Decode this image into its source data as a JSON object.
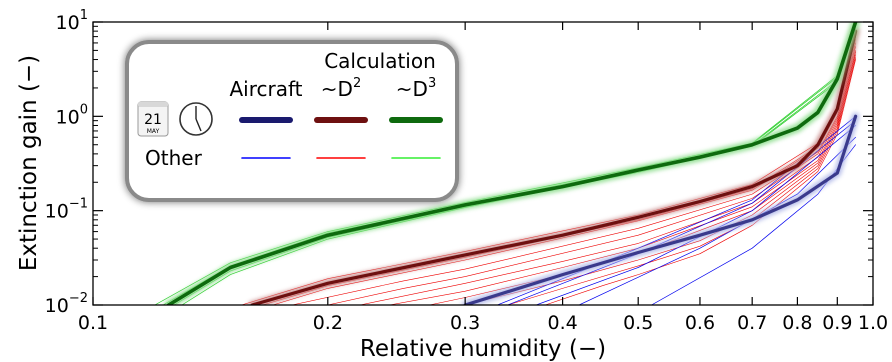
{
  "chart_data": {
    "type": "line",
    "xlabel": "Relative humidity (−)",
    "ylabel": "Extinction gain (−)",
    "xscale": "log",
    "yscale": "log",
    "xlim": [
      0.1,
      1.0
    ],
    "ylim": [
      0.01,
      10
    ],
    "grid": false,
    "x_tick_labels": [
      {
        "v": 0.1,
        "label": "0.1"
      },
      {
        "v": 0.2,
        "label": "0.2"
      },
      {
        "v": 0.3,
        "label": "0.3"
      },
      {
        "v": 0.4,
        "label": "0.4"
      },
      {
        "v": 0.5,
        "label": "0.5"
      },
      {
        "v": 0.6,
        "label": "0.6"
      },
      {
        "v": 0.7,
        "label": "0.7"
      },
      {
        "v": 0.8,
        "label": "0.8"
      },
      {
        "v": 0.9,
        "label": "0.9"
      },
      {
        "v": 1.0,
        "label": "1.0"
      }
    ],
    "y_tick_labels": [
      {
        "v": 0.01,
        "base": "10",
        "exp": "−2"
      },
      {
        "v": 0.1,
        "base": "10",
        "exp": "−1"
      },
      {
        "v": 1,
        "base": "10",
        "exp": "0"
      },
      {
        "v": 10,
        "base": "10",
        "exp": "1"
      }
    ],
    "legend": {
      "placement": "top-left",
      "column_headers": [
        "Aircraft",
        "Calculation",
        "~D",
        "~D"
      ],
      "header_superscripts": [
        "2",
        "3"
      ],
      "row_label": "Other",
      "date_day": "21",
      "date_month": "MAY",
      "entries": [
        {
          "group": "Aircraft",
          "color": "#1a1a6e",
          "thick": true
        },
        {
          "group": "~D²",
          "color": "#6e1010",
          "thick": true
        },
        {
          "group": "~D³",
          "color": "#0e6a0e",
          "thick": true
        },
        {
          "group": "Other",
          "color": "#0000ff",
          "thick": false
        },
        {
          "group": "Other",
          "color": "#ff0000",
          "thick": false
        },
        {
          "group": "Other",
          "color": "#33ee33",
          "thick": false
        }
      ]
    },
    "series": [
      {
        "color": "#3a3a8c",
        "thick": true,
        "blur": "#b0b8e8",
        "width": 3.2,
        "x": [
          0.3,
          0.4,
          0.5,
          0.6,
          0.7,
          0.8,
          0.9,
          0.95
        ],
        "y": [
          0.01,
          0.021,
          0.036,
          0.055,
          0.08,
          0.13,
          0.25,
          1.0
        ]
      },
      {
        "color": "#6e1010",
        "thick": true,
        "blur": "#c88a8a",
        "width": 3.2,
        "x": [
          0.16,
          0.2,
          0.3,
          0.4,
          0.5,
          0.6,
          0.7,
          0.8,
          0.85,
          0.9,
          0.95
        ],
        "y": [
          0.01,
          0.017,
          0.034,
          0.055,
          0.085,
          0.125,
          0.18,
          0.3,
          0.5,
          1.2,
          8.0
        ]
      },
      {
        "color": "#0e6a0e",
        "thick": true,
        "blur": "#8ede8e",
        "width": 3.6,
        "x": [
          0.125,
          0.15,
          0.2,
          0.3,
          0.4,
          0.5,
          0.6,
          0.7,
          0.8,
          0.85,
          0.9,
          0.95
        ],
        "y": [
          0.01,
          0.025,
          0.055,
          0.115,
          0.18,
          0.27,
          0.37,
          0.5,
          0.75,
          1.1,
          2.5,
          10.0
        ]
      },
      {
        "color": "#22cc22",
        "thick": false,
        "width": 0.7,
        "x": [
          0.123,
          0.15,
          0.2,
          0.3,
          0.5,
          0.7,
          0.9,
          0.95
        ],
        "y": [
          0.01,
          0.026,
          0.058,
          0.118,
          0.275,
          0.51,
          2.6,
          10.5
        ]
      },
      {
        "color": "#22cc22",
        "thick": false,
        "width": 0.7,
        "x": [
          0.127,
          0.15,
          0.2,
          0.3,
          0.5,
          0.7,
          0.9,
          0.95
        ],
        "y": [
          0.01,
          0.023,
          0.052,
          0.11,
          0.26,
          0.49,
          2.4,
          9.5
        ]
      },
      {
        "color": "#22cc22",
        "thick": false,
        "width": 0.7,
        "x": [
          0.13,
          0.15,
          0.2,
          0.3,
          0.5,
          0.7,
          0.9,
          0.95
        ],
        "y": [
          0.01,
          0.021,
          0.05,
          0.108,
          0.255,
          0.48,
          2.3,
          9.0
        ]
      },
      {
        "color": "#22cc22",
        "thick": false,
        "width": 0.7,
        "x": [
          0.12,
          0.15,
          0.2,
          0.3,
          0.5,
          0.7,
          0.9,
          0.95
        ],
        "y": [
          0.01,
          0.028,
          0.06,
          0.122,
          0.285,
          0.52,
          2.7,
          11.0
        ]
      },
      {
        "color": "#ee0000",
        "thick": false,
        "width": 0.6,
        "x": [
          0.155,
          0.2,
          0.3,
          0.5,
          0.7,
          0.85,
          0.9,
          0.95
        ],
        "y": [
          0.01,
          0.019,
          0.037,
          0.09,
          0.19,
          0.52,
          1.25,
          8.5
        ]
      },
      {
        "color": "#ee0000",
        "thick": false,
        "width": 0.6,
        "x": [
          0.165,
          0.2,
          0.3,
          0.5,
          0.7,
          0.85,
          0.9,
          0.95
        ],
        "y": [
          0.01,
          0.016,
          0.032,
          0.08,
          0.17,
          0.48,
          1.15,
          7.5
        ]
      },
      {
        "color": "#ee0000",
        "thick": false,
        "width": 0.6,
        "x": [
          0.17,
          0.2,
          0.3,
          0.5,
          0.7,
          0.85,
          0.9,
          0.95
        ],
        "y": [
          0.01,
          0.015,
          0.03,
          0.078,
          0.165,
          0.46,
          1.1,
          7.0
        ]
      },
      {
        "color": "#ee0000",
        "thick": false,
        "width": 0.6,
        "x": [
          0.18,
          0.25,
          0.3,
          0.5,
          0.7,
          0.85,
          0.9,
          0.95
        ],
        "y": [
          0.01,
          0.018,
          0.024,
          0.065,
          0.15,
          0.42,
          1.0,
          6.5
        ]
      },
      {
        "color": "#ee0000",
        "thick": false,
        "width": 0.6,
        "x": [
          0.2,
          0.25,
          0.3,
          0.5,
          0.7,
          0.85,
          0.9,
          0.95
        ],
        "y": [
          0.01,
          0.015,
          0.02,
          0.055,
          0.135,
          0.4,
          0.95,
          6.0
        ]
      },
      {
        "color": "#ee0000",
        "thick": false,
        "width": 0.6,
        "x": [
          0.22,
          0.3,
          0.4,
          0.5,
          0.7,
          0.85,
          0.9,
          0.95
        ],
        "y": [
          0.01,
          0.017,
          0.029,
          0.045,
          0.12,
          0.37,
          0.9,
          5.5
        ]
      },
      {
        "color": "#ee0000",
        "thick": false,
        "width": 0.6,
        "x": [
          0.24,
          0.3,
          0.4,
          0.5,
          0.7,
          0.85,
          0.9,
          0.95
        ],
        "y": [
          0.01,
          0.014,
          0.025,
          0.04,
          0.11,
          0.34,
          0.85,
          5.0
        ]
      },
      {
        "color": "#ee0000",
        "thick": false,
        "width": 0.6,
        "x": [
          0.27,
          0.3,
          0.4,
          0.5,
          0.7,
          0.85,
          0.9,
          0.95
        ],
        "y": [
          0.01,
          0.012,
          0.021,
          0.035,
          0.1,
          0.32,
          0.8,
          4.8
        ]
      },
      {
        "color": "#ee0000",
        "thick": false,
        "width": 0.6,
        "x": [
          0.3,
          0.4,
          0.5,
          0.6,
          0.7,
          0.85,
          0.9,
          0.95
        ],
        "y": [
          0.01,
          0.018,
          0.03,
          0.048,
          0.09,
          0.3,
          0.75,
          4.5
        ]
      },
      {
        "color": "#ee0000",
        "thick": false,
        "width": 0.6,
        "x": [
          0.34,
          0.4,
          0.5,
          0.6,
          0.7,
          0.85,
          0.9,
          0.95
        ],
        "y": [
          0.01,
          0.015,
          0.026,
          0.042,
          0.08,
          0.28,
          0.7,
          4.2
        ]
      },
      {
        "color": "#ee0000",
        "thick": false,
        "width": 0.6,
        "x": [
          0.38,
          0.45,
          0.5,
          0.6,
          0.7,
          0.85,
          0.9,
          0.95
        ],
        "y": [
          0.01,
          0.016,
          0.021,
          0.035,
          0.07,
          0.26,
          0.65,
          4.0
        ]
      },
      {
        "color": "#0000ee",
        "thick": false,
        "width": 0.7,
        "x": [
          0.33,
          0.5,
          0.7,
          0.95
        ],
        "y": [
          0.01,
          0.04,
          0.13,
          1.0
        ]
      },
      {
        "color": "#0000ee",
        "thick": false,
        "width": 0.7,
        "x": [
          0.34,
          0.5,
          0.7,
          0.95
        ],
        "y": [
          0.01,
          0.035,
          0.12,
          0.9
        ]
      },
      {
        "color": "#0000ee",
        "thick": false,
        "width": 0.7,
        "x": [
          0.37,
          0.5,
          0.7,
          0.95
        ],
        "y": [
          0.01,
          0.025,
          0.1,
          0.8
        ]
      },
      {
        "color": "#0000ee",
        "thick": false,
        "width": 0.7,
        "x": [
          0.42,
          0.6,
          0.8,
          0.95
        ],
        "y": [
          0.01,
          0.04,
          0.15,
          0.6
        ]
      },
      {
        "color": "#0000ee",
        "thick": false,
        "width": 0.7,
        "x": [
          0.52,
          0.7,
          0.85,
          0.95
        ],
        "y": [
          0.01,
          0.04,
          0.15,
          0.5
        ]
      }
    ]
  }
}
